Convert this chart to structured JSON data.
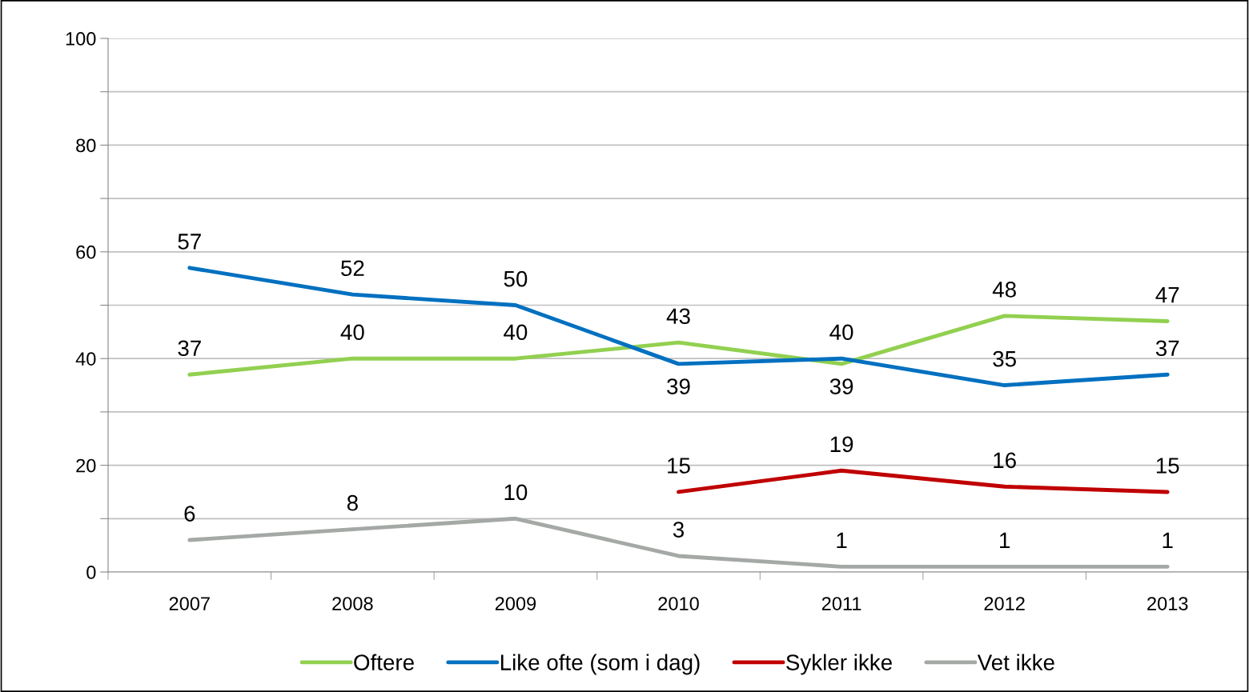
{
  "chart_data": {
    "type": "line",
    "categories": [
      "2007",
      "2008",
      "2009",
      "2010",
      "2011",
      "2012",
      "2013"
    ],
    "series": [
      {
        "name": "Oftere",
        "color": "#92d050",
        "values": [
          37,
          40,
          40,
          43,
          39,
          48,
          47
        ]
      },
      {
        "name": "Like ofte (som i dag)",
        "color": "#0070c0",
        "values": [
          57,
          52,
          50,
          39,
          40,
          35,
          37
        ]
      },
      {
        "name": "Sykler ikke",
        "color": "#c00000",
        "values": [
          null,
          null,
          null,
          15,
          19,
          16,
          15
        ]
      },
      {
        "name": "Vet ikke",
        "color": "#a5a9a5",
        "values": [
          6,
          8,
          10,
          3,
          1,
          1,
          1
        ]
      }
    ],
    "ylim": [
      0,
      100
    ],
    "yticks": [
      0,
      {
        "value": 10,
        "label": null
      },
      20,
      {
        "value": 30,
        "label": null
      },
      40,
      {
        "value": 50,
        "label": null
      },
      60,
      {
        "value": 70,
        "label": null
      },
      80,
      {
        "value": 90,
        "label": null
      },
      100
    ],
    "grid": "y",
    "legend": "bottom",
    "data_labels": true,
    "marker": "none",
    "line_style": "solid"
  }
}
